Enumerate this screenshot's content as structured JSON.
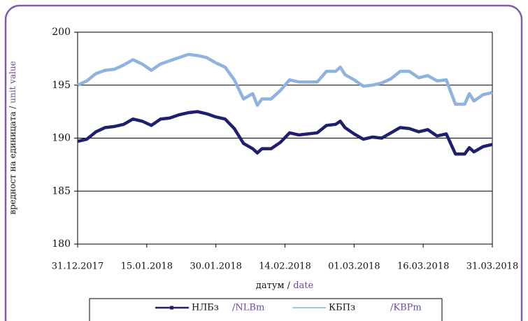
{
  "chart_data": {
    "type": "line",
    "y_label": [
      "вредност на единицата /",
      "unit value"
    ],
    "x_label": [
      "датум /",
      "date"
    ],
    "x": [
      "31.12.2017",
      "02.01.2018",
      "04.01.2018",
      "06.01.2018",
      "08.01.2018",
      "10.01.2018",
      "12.01.2018",
      "14.01.2018",
      "16.01.2018",
      "18.01.2018",
      "20.01.2018",
      "22.01.2018",
      "24.01.2018",
      "26.01.2018",
      "28.01.2018",
      "30.01.2018",
      "01.02.2018",
      "03.02.2018",
      "05.02.2018",
      "07.02.2018",
      "08.02.2018",
      "09.02.2018",
      "11.02.2018",
      "13.02.2018",
      "15.02.2018",
      "17.02.2018",
      "19.02.2018",
      "21.02.2018",
      "23.02.2018",
      "25.02.2018",
      "26.02.2018",
      "27.02.2018",
      "01.03.2018",
      "03.03.2018",
      "05.03.2018",
      "07.03.2018",
      "09.03.2018",
      "11.03.2018",
      "13.03.2018",
      "15.03.2018",
      "17.03.2018",
      "19.03.2018",
      "21.03.2018",
      "23.03.2018",
      "25.03.2018",
      "26.03.2018",
      "27.03.2018",
      "29.03.2018",
      "31.03.2018"
    ],
    "series": [
      {
        "name": "НЛБз",
        "name_en": "/NLBm",
        "color": "#1f1f6e",
        "values": [
          189.7,
          189.9,
          190.6,
          191.0,
          191.1,
          191.3,
          191.8,
          191.6,
          191.2,
          191.8,
          191.9,
          192.2,
          192.4,
          192.5,
          192.3,
          192.0,
          191.8,
          190.9,
          189.5,
          189.0,
          188.6,
          189.0,
          189.0,
          189.6,
          190.5,
          190.3,
          190.4,
          190.5,
          191.2,
          191.3,
          191.6,
          191.0,
          190.4,
          189.9,
          190.1,
          190.0,
          190.5,
          191.0,
          190.9,
          190.6,
          190.8,
          190.2,
          190.4,
          188.5,
          188.5,
          189.1,
          188.7,
          189.2,
          189.4
        ]
      },
      {
        "name": "КБПз",
        "name_en": "/KBPm",
        "color": "#8fb3e0",
        "values": [
          195.0,
          195.4,
          196.1,
          196.4,
          196.5,
          196.9,
          197.4,
          197.0,
          196.4,
          197.0,
          197.3,
          197.6,
          197.9,
          197.8,
          197.6,
          197.1,
          196.7,
          195.5,
          193.7,
          194.2,
          193.1,
          193.7,
          193.7,
          194.5,
          195.5,
          195.3,
          195.3,
          195.3,
          196.3,
          196.3,
          196.7,
          196.0,
          195.5,
          194.9,
          195.0,
          195.2,
          195.6,
          196.3,
          196.3,
          195.7,
          195.9,
          195.4,
          195.5,
          193.2,
          193.2,
          194.2,
          193.5,
          194.1,
          194.3
        ]
      }
    ],
    "xlim": [
      "31.12.2017",
      "31.03.2018"
    ],
    "xticks": [
      "31.12.2017",
      "15.01.2018",
      "30.01.2018",
      "14.02.2018",
      "01.03.2018",
      "16.03.2018",
      "31.03.2018"
    ],
    "ylim": [
      180,
      200
    ],
    "yticks": [
      180,
      185,
      190,
      195,
      200
    ],
    "grid": true
  }
}
